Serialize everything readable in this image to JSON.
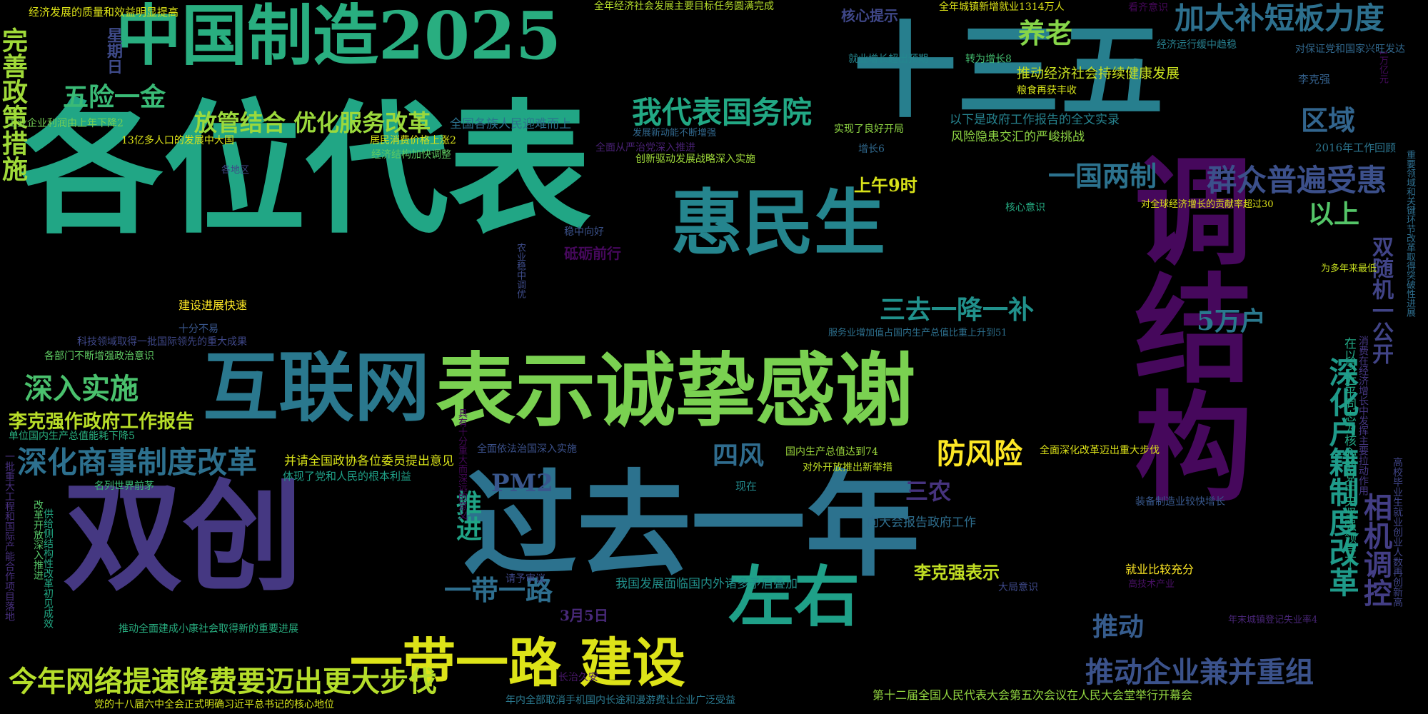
{
  "colors": {
    "background": "#000000"
  },
  "words": [
    {
      "text": "各位代表",
      "color": "#21a685"
    },
    {
      "text": "十三五",
      "color": "#277f8e"
    },
    {
      "text": "中国制造2025",
      "color": "#29ae80"
    },
    {
      "text": "调结构",
      "color": "#46085c"
    },
    {
      "text": "过去一年",
      "color": "#2c728e"
    },
    {
      "text": "双创",
      "color": "#453882"
    },
    {
      "text": "表示诚挚感谢",
      "color": "#7ad151"
    },
    {
      "text": "互联网",
      "color": "#2a788e"
    },
    {
      "text": "惠民生",
      "color": "#25858e"
    },
    {
      "text": "一带一路 建设",
      "color": "#dde318"
    },
    {
      "text": "左右",
      "color": "#1fa088"
    },
    {
      "text": "加大补短板力度",
      "color": "#2d708e"
    },
    {
      "text": "群众普遍受惠",
      "color": "#3c508b"
    },
    {
      "text": "深化户籍制度改革",
      "color": "#1f9a8a"
    },
    {
      "text": "相机调控",
      "color": "#433e85"
    },
    {
      "text": "今年网络提速降费要迈出更大步伐",
      "color": "#b5de2b"
    },
    {
      "text": "推动企业兼并重组",
      "color": "#3b528b"
    },
    {
      "text": "我代表国务院",
      "color": "#22a884"
    },
    {
      "text": "放管结合 优化服务改革",
      "color": "#9bd93c"
    },
    {
      "text": "深化商事制度改革",
      "color": "#2d708e"
    },
    {
      "text": "李克强作政府工作报告",
      "color": "#b8de29"
    },
    {
      "text": "深入实施",
      "color": "#4ac16d"
    },
    {
      "text": "完善政策措施",
      "color": "#a0da39"
    },
    {
      "text": "一国两制",
      "color": "#2c728e"
    },
    {
      "text": "三去一降一补",
      "color": "#21918c"
    },
    {
      "text": "防风险",
      "color": "#fde725"
    },
    {
      "text": "一带一路",
      "color": "#2e6e8e"
    },
    {
      "text": "四风",
      "color": "#2f6c8e"
    },
    {
      "text": "五险一金",
      "color": "#3aba76"
    },
    {
      "text": "养老",
      "color": "#86d549"
    },
    {
      "text": "区域",
      "color": "#32658e"
    },
    {
      "text": "以上",
      "color": "#54c568"
    },
    {
      "text": "5万户",
      "color": "#2a788e"
    },
    {
      "text": "推动",
      "color": "#365c8d"
    },
    {
      "text": "推进",
      "color": "#20a486"
    },
    {
      "text": "PM2",
      "color": "#39568c"
    },
    {
      "text": "三农",
      "color": "#46337e"
    },
    {
      "text": "双随机一公开",
      "color": "#414487"
    },
    {
      "text": "李克强表示",
      "color": "#c2df23"
    },
    {
      "text": "上午9时",
      "color": "#d8e219"
    },
    {
      "text": "砥砺前行",
      "color": "#46085c"
    },
    {
      "text": "3月5日",
      "color": "#482979"
    },
    {
      "text": "核心提示",
      "color": "#3f4788"
    },
    {
      "text": "星期日",
      "color": "#3e4a89"
    },
    {
      "text": "经济发展的质量和效益明显提高",
      "color": "#dde318"
    },
    {
      "text": "全年经济社会发展主要目标任务圆满完成",
      "color": "#b5de2b"
    },
    {
      "text": "全年城镇新增就业1314万人",
      "color": "#dde318"
    },
    {
      "text": "看齐意识",
      "color": "#46075a"
    },
    {
      "text": "转为增长8",
      "color": "#44bf70"
    },
    {
      "text": "就业增长超出预期",
      "color": "#24868e"
    },
    {
      "text": "推动经济社会持续健康发展",
      "color": "#c8e020"
    },
    {
      "text": "粮食再获丰收",
      "color": "#d5e21a"
    },
    {
      "text": "经济运行缓中趋稳",
      "color": "#277f8e"
    },
    {
      "text": "对保证党和国家兴旺发达",
      "color": "#31688e"
    },
    {
      "text": "李克强",
      "color": "#34618d"
    },
    {
      "text": "以下是政府工作报告的全文实录",
      "color": "#26828e"
    },
    {
      "text": "风险隐患交汇的严峻挑战",
      "color": "#8fd744"
    },
    {
      "text": "2016年工作回顾",
      "color": "#2b748e"
    },
    {
      "text": "实现了良好开局",
      "color": "#8fd744"
    },
    {
      "text": "增长6",
      "color": "#30698e"
    },
    {
      "text": "工业企业利润由上年下降2",
      "color": "#75d054"
    },
    {
      "text": "13亿多人口的发展中大国",
      "color": "#dde318"
    },
    {
      "text": "居民消费价格上涨2",
      "color": "#d8e219"
    },
    {
      "text": "全国各族人民迎难而上",
      "color": "#2c728e"
    },
    {
      "text": "经济结构加快调整",
      "color": "#5ec962"
    },
    {
      "text": "发展新动能不断增强",
      "color": "#31688e"
    },
    {
      "text": "全面从严治党深入推进",
      "color": "#482173"
    },
    {
      "text": "创新驱动发展战略深入实施",
      "color": "#9fda3a"
    },
    {
      "text": "各地区",
      "color": "#3f4788"
    },
    {
      "text": "核心意识",
      "color": "#25ab82"
    },
    {
      "text": "对全球经济增长的贡献率超过30",
      "color": "#dde318"
    },
    {
      "text": "为多年来最低",
      "color": "#c8e020"
    },
    {
      "text": "稳中向好",
      "color": "#3b528b"
    },
    {
      "text": "农业稳中调优",
      "color": "#3e4c8a"
    },
    {
      "text": "建设进展快速",
      "color": "#fde725"
    },
    {
      "text": "十分不易",
      "color": "#39568c"
    },
    {
      "text": "科技领域取得一批国际领先的重大成果",
      "color": "#3f4889"
    },
    {
      "text": "各部门不断增强政治意识",
      "color": "#5ec962"
    },
    {
      "text": "服务业增加值占国内生产总值比重上升到51",
      "color": "#2d708e"
    },
    {
      "text": "单位国内生产总值能耗下降5",
      "color": "#29af7f"
    },
    {
      "text": "并请全国政协各位委员提出意见",
      "color": "#d8e219"
    },
    {
      "text": "体现了党和人民的根本利益",
      "color": "#1fa188"
    },
    {
      "text": "名列世界前茅",
      "color": "#3aba76"
    },
    {
      "text": "全面依法治国深入实施",
      "color": "#3b518b"
    },
    {
      "text": "国内生产总值达到74",
      "color": "#9bd93c"
    },
    {
      "text": "对外开放推出新举措",
      "color": "#c0df25"
    },
    {
      "text": "全面深化改革迈出重大步伐",
      "color": "#dde318"
    },
    {
      "text": "现在",
      "color": "#238a8d"
    },
    {
      "text": "向大会报告政府工作",
      "color": "#2e6e8e"
    },
    {
      "text": "装备制造业较快增长",
      "color": "#38588c"
    },
    {
      "text": "就业比较充分",
      "color": "#fde725"
    },
    {
      "text": "高技术产业",
      "color": "#471063"
    },
    {
      "text": "大局意识",
      "color": "#3e4989"
    },
    {
      "text": "请予审议",
      "color": "#3f4889"
    },
    {
      "text": "我国发展面临国内外诸多矛盾叠加",
      "color": "#21918c"
    },
    {
      "text": "推动全面建成小康社会取得新的重要进展",
      "color": "#28ae80"
    },
    {
      "text": "长治久安",
      "color": "#481769"
    },
    {
      "text": "党的十八届六中全会正式明确习近平总书记的核心地位",
      "color": "#d2e21b"
    },
    {
      "text": "年内全部取消手机国内长途和漫游费让企业广泛受益",
      "color": "#2a788e"
    },
    {
      "text": "第十二届全国人民代表大会第五次会议在人民大会堂举行开幕会",
      "color": "#93d741"
    },
    {
      "text": "年末城镇登记失业率4",
      "color": "#482576"
    },
    {
      "text": "具有十分重大而深远的意义",
      "color": "#46075a"
    },
    {
      "text": "在以习近平同志为核心的党中央坚强领导下",
      "color": "#22a785"
    },
    {
      "text": "消费在经济增长中发挥主要拉动作用",
      "color": "#453781"
    },
    {
      "text": "重要领域和关键环节改革取得突破性进展",
      "color": "#2e6e8e"
    },
    {
      "text": "高校毕业生就业创业人数再创新高",
      "color": "#404588"
    },
    {
      "text": "一批重大工程和国际产能合作项目落地",
      "color": "#472f7d"
    },
    {
      "text": "改革开放深入推进",
      "color": "#56c667"
    },
    {
      "text": "供给侧结构性改革初见成效",
      "color": "#22a884"
    },
    {
      "text": "1万亿元",
      "color": "#460b5e"
    }
  ]
}
